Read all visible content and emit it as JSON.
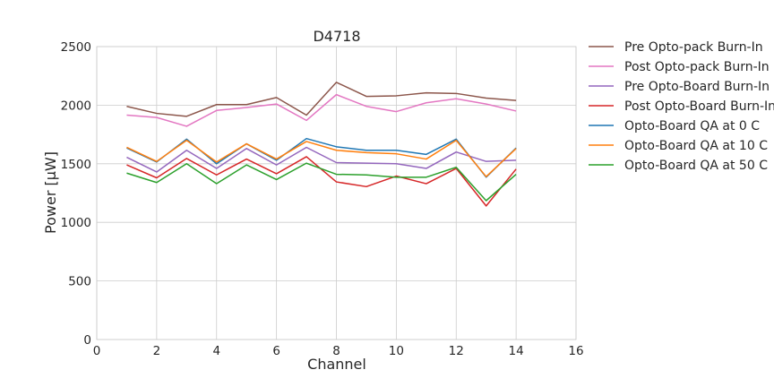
{
  "chart_data": {
    "type": "line",
    "title": "D4718",
    "xlabel": "Channel",
    "ylabel": "Power [μW]",
    "xlim": [
      0,
      16
    ],
    "ylim": [
      0,
      2500
    ],
    "xticks": [
      0,
      2,
      4,
      6,
      8,
      10,
      12,
      14,
      16
    ],
    "yticks": [
      0,
      500,
      1000,
      1500,
      2000,
      2500
    ],
    "grid": true,
    "legend_position": "outside-right",
    "x": [
      1,
      2,
      3,
      4,
      5,
      6,
      7,
      8,
      9,
      10,
      11,
      12,
      13,
      14
    ],
    "series": [
      {
        "name": "Pre Opto-pack Burn-In",
        "color": "#8c564b",
        "values": [
          1990,
          1930,
          1905,
          2005,
          2005,
          2065,
          1915,
          2195,
          2075,
          2080,
          2105,
          2100,
          2060,
          2040
        ]
      },
      {
        "name": "Post Opto-pack Burn-In",
        "color": "#e377c2",
        "values": [
          1915,
          1895,
          1820,
          1955,
          1980,
          2010,
          1870,
          2090,
          1990,
          1945,
          2020,
          2055,
          2010,
          1950
        ]
      },
      {
        "name": "Pre Opto-Board Burn-In",
        "color": "#9467bd",
        "values": [
          1555,
          1430,
          1615,
          1460,
          1630,
          1490,
          1640,
          1510,
          1505,
          1500,
          1460,
          1600,
          1520,
          1530
        ]
      },
      {
        "name": "Post Opto-Board Burn-In",
        "color": "#d62728",
        "values": [
          1490,
          1380,
          1545,
          1405,
          1540,
          1415,
          1560,
          1345,
          1305,
          1395,
          1330,
          1460,
          1140,
          1455
        ]
      },
      {
        "name": "Opto-Board QA at 0 C",
        "color": "#1f77b4",
        "values": [
          1635,
          1515,
          1710,
          1500,
          1670,
          1530,
          1715,
          1645,
          1615,
          1615,
          1580,
          1710,
          1385,
          1635
        ]
      },
      {
        "name": "Opto-Board QA at 10 C",
        "color": "#ff7f0e",
        "values": [
          1640,
          1520,
          1700,
          1515,
          1670,
          1540,
          1690,
          1615,
          1595,
          1585,
          1540,
          1700,
          1390,
          1630
        ]
      },
      {
        "name": "Opto-Board QA at 50 C",
        "color": "#2ca02c",
        "values": [
          1420,
          1340,
          1500,
          1330,
          1490,
          1365,
          1505,
          1410,
          1405,
          1385,
          1385,
          1470,
          1185,
          1410
        ]
      }
    ]
  }
}
